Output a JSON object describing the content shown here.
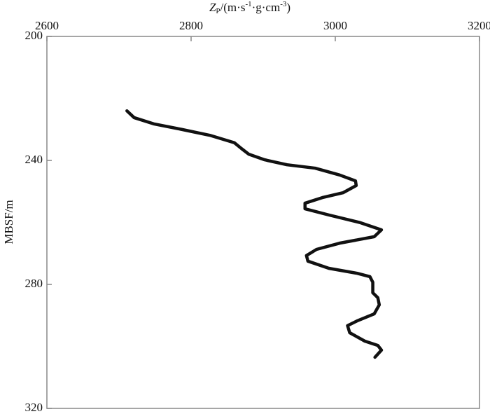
{
  "chart_data": {
    "type": "line",
    "xlabel": [
      {
        "text": "Z",
        "pos": "base",
        "italic": true
      },
      {
        "text": "P",
        "pos": "sub"
      },
      {
        "text": "/(m·s",
        "pos": "base"
      },
      {
        "text": "-1",
        "pos": "sup"
      },
      {
        "text": "·g·cm",
        "pos": "base"
      },
      {
        "text": "-3",
        "pos": "sup"
      },
      {
        "text": ")",
        "pos": "base"
      }
    ],
    "ylabel": "MBSF/m",
    "x": [
      2711,
      2721,
      2748,
      2787,
      2826,
      2860,
      2870,
      2880,
      2902,
      2933,
      2972,
      3006,
      3028,
      3029,
      3011,
      2982,
      2958,
      2958,
      2991,
      3035,
      3064,
      3054,
      3006,
      2974,
      2960,
      2962,
      2991,
      3030,
      3048,
      3052,
      3052,
      3059,
      3061,
      3054,
      3030,
      3017,
      3020,
      3041,
      3059,
      3064,
      3055
    ],
    "y": [
      224.0,
      226.2,
      228.2,
      230.0,
      231.9,
      234.3,
      236.2,
      238.0,
      239.8,
      241.4,
      242.5,
      244.7,
      246.6,
      248.1,
      250.4,
      252.0,
      253.8,
      255.6,
      257.6,
      260.1,
      262.4,
      264.6,
      266.7,
      268.7,
      270.7,
      272.5,
      274.8,
      276.4,
      277.5,
      279.3,
      282.7,
      284.3,
      286.6,
      289.5,
      291.8,
      293.3,
      295.6,
      298.3,
      299.7,
      301.2,
      303.5
    ],
    "color": "#111111",
    "xlim": [
      2600,
      3200
    ],
    "xticks": [
      2600,
      2800,
      3000,
      3200
    ],
    "ylim": [
      200,
      320
    ],
    "yticks": [
      200,
      240,
      280,
      320
    ],
    "x_axis_position": "top",
    "y_inverted": true
  }
}
